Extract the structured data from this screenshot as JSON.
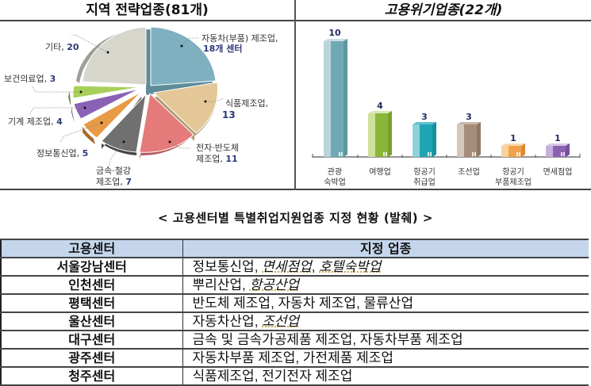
{
  "left_panel": {
    "title": "지역 전략업종(81개)"
  },
  "right_panel": {
    "title": "고용위기업종(22개)"
  },
  "chart_data": [
    {
      "type": "pie",
      "title": "지역 전략업종(81개)",
      "total": 81,
      "slices": [
        {
          "label": "자동차(부품) 제조업, 18개 센터",
          "name": "자동차(부품) 제조업",
          "value": 18,
          "color": "#7fb0bf"
        },
        {
          "label": "식품제조업, 13",
          "name": "식품제조업",
          "value": 13,
          "color": "#e3c796"
        },
        {
          "label": "전자·반도체 제조업, 11",
          "name": "전자·반도체 제조업",
          "value": 11,
          "color": "#e47a7a"
        },
        {
          "label": "금속·철강 제조업, 7",
          "name": "금속·철강 제조업",
          "value": 7,
          "color": "#707070"
        },
        {
          "label": "정보통신업, 5",
          "name": "정보통신업",
          "value": 5,
          "color": "#e99a45"
        },
        {
          "label": "기계 제조업, 4",
          "name": "기계 제조업",
          "value": 4,
          "color": "#8a62b5"
        },
        {
          "label": "보건의료업, 3",
          "name": "보건의료업",
          "value": 3,
          "color": "#a8cf5a"
        },
        {
          "label": "기타, 20",
          "name": "기타",
          "value": 20,
          "color": "#d6d6cd"
        }
      ]
    },
    {
      "type": "bar",
      "title": "고용위기업종(22개)",
      "categories": [
        "관광 숙박업",
        "여행업",
        "항공기 취급업",
        "조선업",
        "항공기 부품제조업",
        "면세점업"
      ],
      "category_lines": [
        [
          "관광",
          "숙박업"
        ],
        [
          "여행업"
        ],
        [
          "항공기",
          "취급업"
        ],
        [
          "조선업"
        ],
        [
          "항공기",
          "부품제조업"
        ],
        [
          "면세점업"
        ]
      ],
      "values": [
        10,
        4,
        3,
        3,
        1,
        1
      ],
      "colors": [
        "#6fa9b4",
        "#8ab63a",
        "#1fa6b4",
        "#a58d7a",
        "#f2a24a",
        "#8b62b2"
      ],
      "light_colors": [
        "#b9d4da",
        "#cfe09b",
        "#8fd2da",
        "#d5c8bc",
        "#f9d29d",
        "#c7b0dd"
      ],
      "xlabel": "",
      "ylabel": "",
      "ylim": [
        0,
        10
      ],
      "grid": false
    }
  ],
  "pie_labels": {
    "auto": {
      "line1": "자동차(부품) 제조업,",
      "line2": "18개 센터"
    },
    "food": {
      "name": "식품제조업,",
      "value": "13"
    },
    "elec": {
      "line1": "전자·반도체",
      "name": "제조업, ",
      "value": "11"
    },
    "metal": {
      "line1": "금속·철강",
      "name": "제조업, ",
      "value": "7"
    },
    "info": {
      "name": "정보통신업, ",
      "value": "5"
    },
    "mach": {
      "name": "기계 제조업, ",
      "value": "4"
    },
    "health": {
      "name": "보건의료업, ",
      "value": "3"
    },
    "etc": {
      "name": "기타, ",
      "value": "20"
    }
  },
  "bar_labels": {
    "values": [
      "10",
      "4",
      "3",
      "3",
      "1",
      "1"
    ],
    "cat0a": "관광",
    "cat0b": "숙박업",
    "cat1a": "여행업",
    "cat2a": "항공기",
    "cat2b": "취급업",
    "cat3a": "조선업",
    "cat4a": "항공기",
    "cat4b": "부품제조업",
    "cat5a": "면세점업"
  },
  "table": {
    "caption": "< 고용센터별 특별취업지원업종 지정 현황 (발췌) >",
    "headers": [
      "고용센터",
      "지정 업종"
    ],
    "rows": [
      {
        "center": "서울강남센터",
        "items": [
          {
            "text": "정보통신업, ",
            "italic": false
          },
          {
            "text": "면세점업",
            "italic": true
          },
          {
            "text": ", ",
            "italic": false
          },
          {
            "text": "호텔숙박업",
            "italic": true
          }
        ]
      },
      {
        "center": "인천센터",
        "items": [
          {
            "text": "뿌리산업, ",
            "italic": false
          },
          {
            "text": "항공산업",
            "italic": true
          }
        ]
      },
      {
        "center": "평택센터",
        "items": [
          {
            "text": "반도체 제조업, 자동차 제조업, 물류산업",
            "italic": false
          }
        ]
      },
      {
        "center": "울산센터",
        "items": [
          {
            "text": "자동차산업, ",
            "italic": false
          },
          {
            "text": "조선업",
            "italic": true
          }
        ]
      },
      {
        "center": "대구센터",
        "items": [
          {
            "text": "금속 및 금속가공제품 제조업, 자동차부품 제조업",
            "italic": false
          }
        ]
      },
      {
        "center": "광주센터",
        "items": [
          {
            "text": "자동차부품 제조업, 가전제품 제조업",
            "italic": false
          }
        ]
      },
      {
        "center": "청주센터",
        "items": [
          {
            "text": "식품제조업, 전기전자 제조업",
            "italic": false
          }
        ]
      }
    ]
  }
}
